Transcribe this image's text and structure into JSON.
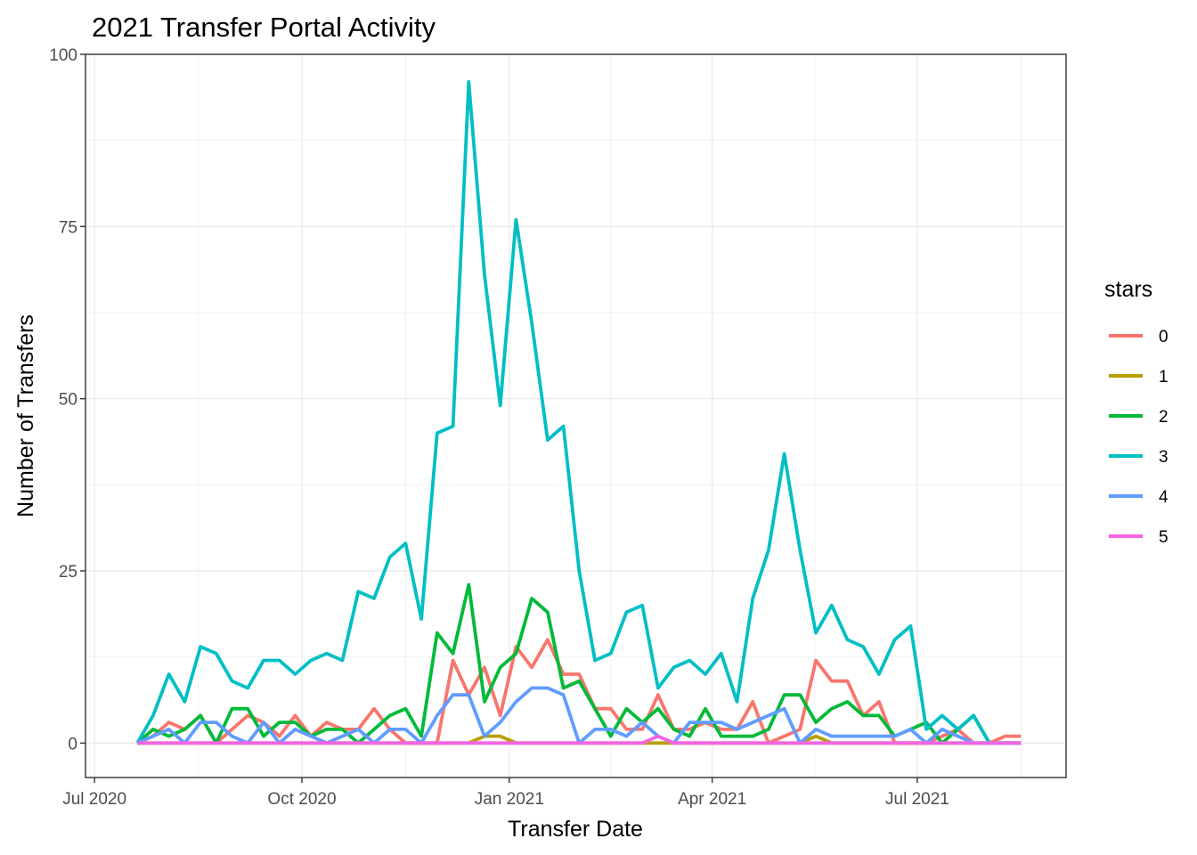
{
  "chart_data": {
    "type": "line",
    "title": "2021 Transfer Portal Activity",
    "xlabel": "Transfer Date",
    "ylabel": "Number of Transfers",
    "legend_title": "stars",
    "legend_position": "right",
    "grid": true,
    "ylim": [
      -5,
      100
    ],
    "xlim": [
      "2020-06-27",
      "2021-09-05"
    ],
    "x_ticks": [
      {
        "date": "2020-07-01",
        "label": "Jul 2020"
      },
      {
        "date": "2020-10-01",
        "label": "Oct 2020"
      },
      {
        "date": "2021-01-01",
        "label": "Jan 2021"
      },
      {
        "date": "2021-04-01",
        "label": "Apr 2021"
      },
      {
        "date": "2021-07-01",
        "label": "Jul 2021"
      }
    ],
    "y_ticks": [
      0,
      25,
      50,
      75,
      100
    ],
    "x": [
      "2020-07-20",
      "2020-07-27",
      "2020-08-03",
      "2020-08-10",
      "2020-08-17",
      "2020-08-24",
      "2020-08-31",
      "2020-09-07",
      "2020-09-14",
      "2020-09-21",
      "2020-09-28",
      "2020-10-05",
      "2020-10-12",
      "2020-10-19",
      "2020-10-26",
      "2020-11-02",
      "2020-11-09",
      "2020-11-16",
      "2020-11-23",
      "2020-11-30",
      "2020-12-07",
      "2020-12-14",
      "2020-12-21",
      "2020-12-28",
      "2021-01-04",
      "2021-01-11",
      "2021-01-18",
      "2021-01-25",
      "2021-02-01",
      "2021-02-08",
      "2021-02-15",
      "2021-02-22",
      "2021-03-01",
      "2021-03-08",
      "2021-03-15",
      "2021-03-22",
      "2021-03-29",
      "2021-04-05",
      "2021-04-12",
      "2021-04-19",
      "2021-04-26",
      "2021-05-03",
      "2021-05-10",
      "2021-05-17",
      "2021-05-24",
      "2021-05-31",
      "2021-06-07",
      "2021-06-14",
      "2021-06-21",
      "2021-06-28",
      "2021-07-05",
      "2021-07-12",
      "2021-07-19",
      "2021-07-26",
      "2021-08-02",
      "2021-08-09",
      "2021-08-16"
    ],
    "series": [
      {
        "name": "0",
        "color": "#F8766D",
        "values": [
          0,
          1,
          3,
          2,
          4,
          0,
          2,
          4,
          3,
          1,
          4,
          1,
          3,
          2,
          2,
          5,
          2,
          0,
          0,
          0,
          12,
          7,
          11,
          4,
          14,
          11,
          15,
          10,
          10,
          5,
          5,
          2,
          2,
          7,
          2,
          2,
          3,
          2,
          2,
          6,
          0,
          1,
          2,
          12,
          9,
          9,
          4,
          6,
          0,
          0,
          0,
          1,
          2,
          0,
          0,
          1,
          1
        ]
      },
      {
        "name": "1",
        "color": "#B79F00",
        "values": [
          0,
          0,
          0,
          0,
          0,
          0,
          0,
          0,
          0,
          0,
          0,
          0,
          0,
          0,
          0,
          0,
          0,
          0,
          0,
          0,
          0,
          0,
          1,
          1,
          0,
          0,
          0,
          0,
          0,
          0,
          0,
          0,
          0,
          0,
          0,
          0,
          0,
          0,
          0,
          0,
          0,
          0,
          0,
          1,
          0,
          0,
          0,
          0,
          0,
          0,
          0,
          0,
          0,
          0,
          0,
          0,
          0
        ]
      },
      {
        "name": "2",
        "color": "#00BA38",
        "values": [
          0,
          2,
          1,
          2,
          4,
          0,
          5,
          5,
          1,
          3,
          3,
          1,
          2,
          2,
          0,
          2,
          4,
          5,
          1,
          16,
          13,
          23,
          6,
          11,
          13,
          21,
          19,
          8,
          9,
          5,
          1,
          5,
          3,
          5,
          2,
          1,
          5,
          1,
          1,
          1,
          2,
          7,
          7,
          3,
          5,
          6,
          4,
          4,
          1,
          2,
          3,
          0,
          2,
          4,
          0,
          0,
          0
        ]
      },
      {
        "name": "3",
        "color": "#00BFC4",
        "values": [
          0,
          4,
          10,
          6,
          14,
          13,
          9,
          8,
          12,
          12,
          10,
          12,
          13,
          12,
          22,
          21,
          27,
          29,
          18,
          45,
          46,
          96,
          68,
          49,
          76,
          61,
          44,
          46,
          25,
          12,
          13,
          19,
          20,
          8,
          11,
          12,
          10,
          13,
          6,
          21,
          28,
          42,
          28,
          16,
          20,
          15,
          14,
          10,
          15,
          17,
          2,
          4,
          2,
          4,
          0,
          0,
          0
        ]
      },
      {
        "name": "4",
        "color": "#619CFF",
        "values": [
          0,
          1,
          2,
          0,
          3,
          3,
          1,
          0,
          3,
          0,
          2,
          1,
          0,
          1,
          2,
          0,
          2,
          2,
          0,
          4,
          7,
          7,
          1,
          3,
          6,
          8,
          8,
          7,
          0,
          2,
          2,
          1,
          3,
          1,
          0,
          3,
          3,
          3,
          2,
          3,
          4,
          5,
          0,
          2,
          1,
          1,
          1,
          1,
          1,
          2,
          0,
          2,
          1,
          0,
          0,
          0,
          0
        ]
      },
      {
        "name": "5",
        "color": "#F564E3",
        "values": [
          0,
          0,
          0,
          0,
          0,
          0,
          0,
          0,
          0,
          0,
          0,
          0,
          0,
          0,
          0,
          0,
          0,
          0,
          0,
          0,
          0,
          0,
          0,
          0,
          0,
          0,
          0,
          0,
          0,
          0,
          0,
          0,
          0,
          1,
          0,
          0,
          0,
          0,
          0,
          0,
          0,
          0,
          0,
          0,
          0,
          0,
          0,
          0,
          0,
          0,
          0,
          0,
          0,
          0,
          0,
          0,
          0
        ]
      }
    ]
  }
}
